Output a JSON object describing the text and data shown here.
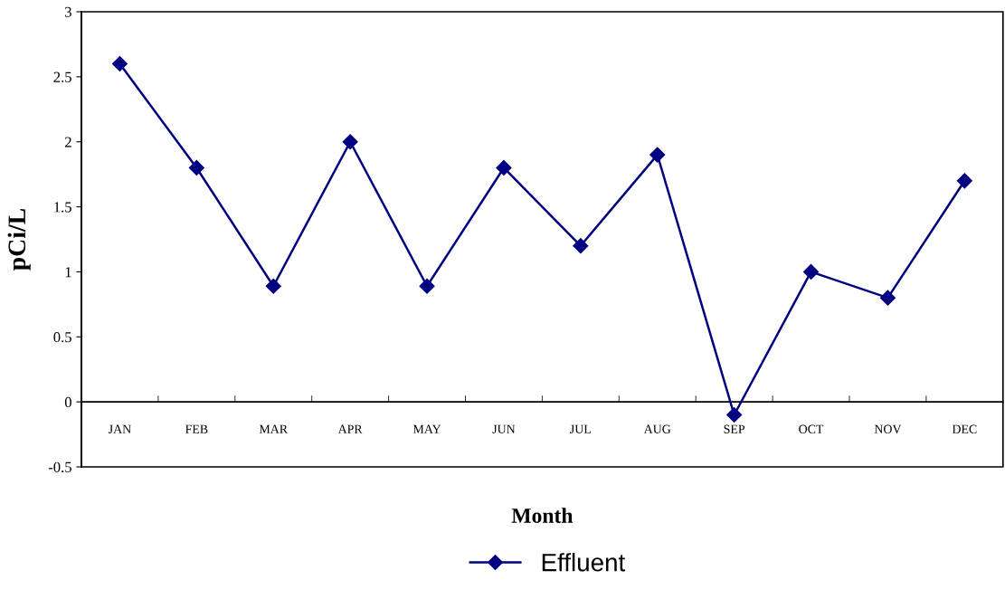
{
  "chart_data": {
    "type": "line",
    "xlabel": "Month",
    "ylabel": "pCi/L",
    "categories": [
      "JAN",
      "FEB",
      "MAR",
      "APR",
      "MAY",
      "JUN",
      "JUL",
      "AUG",
      "SEP",
      "OCT",
      "NOV",
      "DEC"
    ],
    "series": [
      {
        "name": "Effluent",
        "color": "#000080",
        "values": [
          2.6,
          1.8,
          0.89,
          2.0,
          0.89,
          1.8,
          1.2,
          1.9,
          -0.1,
          1.0,
          0.8,
          1.7
        ]
      }
    ],
    "ylim": [
      -0.5,
      3
    ],
    "yticks": [
      -0.5,
      0,
      0.5,
      1,
      1.5,
      2,
      2.5,
      3
    ],
    "marker": "diamond",
    "line_style": "solid",
    "grid": false,
    "legend": "bottom"
  }
}
